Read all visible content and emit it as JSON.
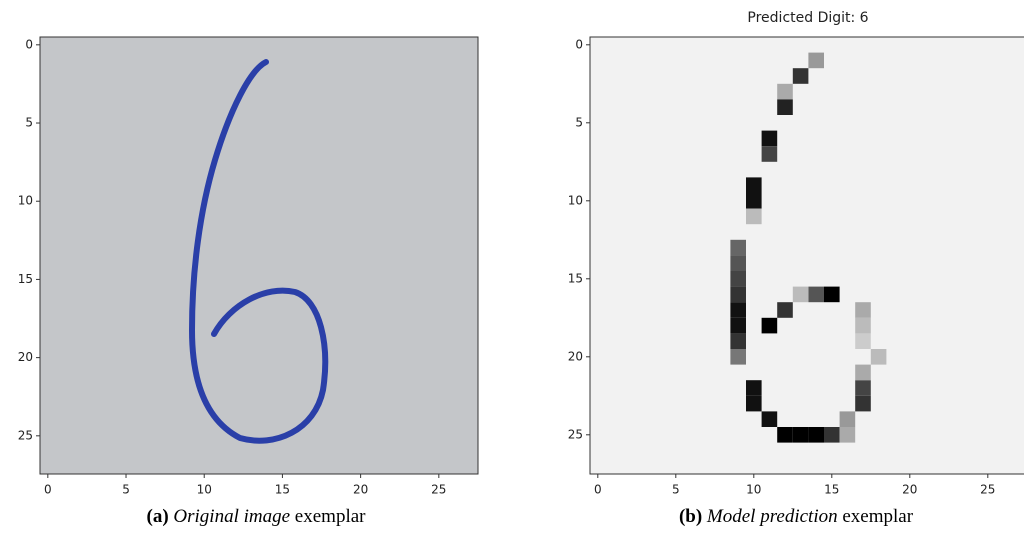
{
  "figure": {
    "panels": [
      {
        "xticks": [
          0,
          5,
          10,
          15,
          20,
          25
        ],
        "yticks": [
          0,
          5,
          10,
          15,
          20,
          25
        ],
        "caption": {
          "label": "(a)",
          "emphasis": "Original image",
          "text": "exemplar"
        }
      },
      {
        "title": "Predicted Digit: 6",
        "xticks": [
          0,
          5,
          10,
          15,
          20,
          25
        ],
        "yticks": [
          0,
          5,
          10,
          15,
          20,
          25
        ],
        "caption": {
          "label": "(b)",
          "emphasis": "Model prediction",
          "text": "exemplar"
        }
      }
    ]
  }
}
